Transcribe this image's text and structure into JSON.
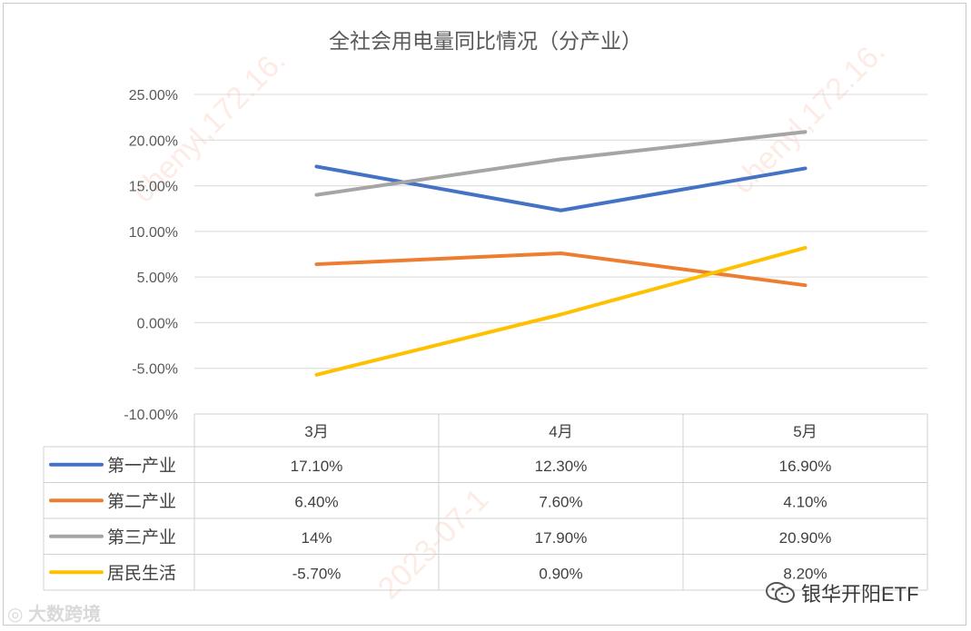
{
  "chart_data": {
    "type": "line",
    "title": "全社会用电量同比情况（分产业）",
    "categories": [
      "3月",
      "4月",
      "5月"
    ],
    "series": [
      {
        "name": "第一产业",
        "color": "#4472c4",
        "values": [
          17.1,
          12.3,
          16.9
        ],
        "labels": [
          "17.10%",
          "12.30%",
          "16.90%"
        ]
      },
      {
        "name": "第二产业",
        "color": "#ed7d31",
        "values": [
          6.4,
          7.6,
          4.1
        ],
        "labels": [
          "6.40%",
          "7.60%",
          "4.10%"
        ]
      },
      {
        "name": "第三产业",
        "color": "#a5a5a5",
        "values": [
          14.0,
          17.9,
          20.9
        ],
        "labels": [
          "14%",
          "17.90%",
          "20.90%"
        ]
      },
      {
        "name": "居民生活",
        "color": "#ffc000",
        "values": [
          -5.7,
          0.9,
          8.2
        ],
        "labels": [
          "-5.70%",
          "0.90%",
          "8.20%"
        ]
      }
    ],
    "ylim": [
      -10,
      25
    ],
    "yticks": [
      "25.00%",
      "20.00%",
      "15.00%",
      "10.00%",
      "5.00%",
      "0.00%",
      "-5.00%",
      "-10.00%"
    ],
    "grid": true,
    "legend": "data-table"
  },
  "watermark": {
    "bottom_left": "大数跨境",
    "brand": "银华开阳ETF",
    "diagonal": "chenyl,172.16.",
    "diagonal2": "2023-07-1"
  }
}
